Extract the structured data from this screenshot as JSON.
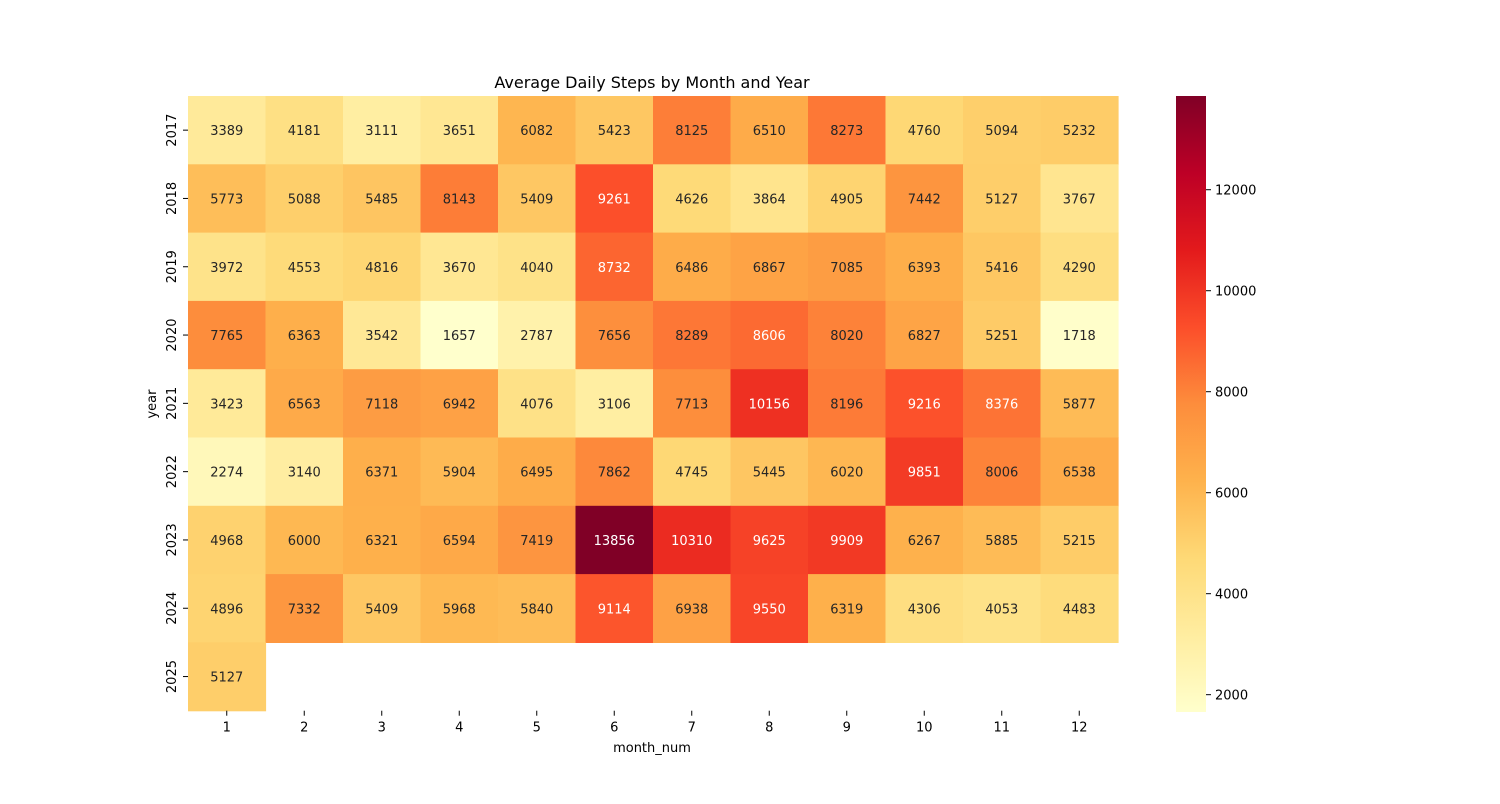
{
  "chart_data": {
    "type": "heatmap",
    "title": "Average Daily Steps by Month and Year",
    "xlabel": "month_num",
    "ylabel": "year",
    "x_categories": [
      "1",
      "2",
      "3",
      "4",
      "5",
      "6",
      "7",
      "8",
      "9",
      "10",
      "11",
      "12"
    ],
    "y_categories": [
      "2017",
      "2018",
      "2019",
      "2020",
      "2021",
      "2022",
      "2023",
      "2024",
      "2025"
    ],
    "values": [
      [
        3389,
        4181,
        3111,
        3651,
        6082,
        5423,
        8125,
        6510,
        8273,
        4760,
        5094,
        5232
      ],
      [
        5773,
        5088,
        5485,
        8143,
        5409,
        9261,
        4626,
        3864,
        4905,
        7442,
        5127,
        3767
      ],
      [
        3972,
        4553,
        4816,
        3670,
        4040,
        8732,
        6486,
        6867,
        7085,
        6393,
        5416,
        4290
      ],
      [
        7765,
        6363,
        3542,
        1657,
        2787,
        7656,
        8289,
        8606,
        8020,
        6827,
        5251,
        1718
      ],
      [
        3423,
        6563,
        7118,
        6942,
        4076,
        3106,
        7713,
        10156,
        8196,
        9216,
        8376,
        5877
      ],
      [
        2274,
        3140,
        6371,
        5904,
        6495,
        7862,
        4745,
        5445,
        6020,
        9851,
        8006,
        6538
      ],
      [
        4968,
        6000,
        6321,
        6594,
        7419,
        13856,
        10310,
        9625,
        9909,
        6267,
        5885,
        5215
      ],
      [
        4896,
        7332,
        5409,
        5968,
        5840,
        9114,
        6938,
        9550,
        6319,
        4306,
        4053,
        4483
      ],
      [
        5127,
        null,
        null,
        null,
        null,
        null,
        null,
        null,
        null,
        null,
        null,
        null
      ]
    ],
    "colormap": "YlOrRd",
    "vmin": 1657,
    "vmax": 13856,
    "colorbar_ticks": [
      "2000",
      "4000",
      "6000",
      "8000",
      "10000",
      "12000"
    ],
    "legend_position": "right",
    "grid": false
  }
}
